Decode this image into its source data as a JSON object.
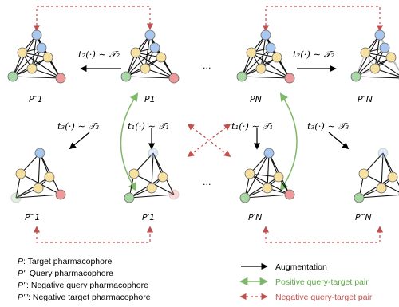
{
  "colors": {
    "blue": "#a8c8f0",
    "yellow": "#f7e1a0",
    "green": "#a9d7a3",
    "red": "#ef9a9a",
    "augment_arrow": "#000000",
    "positive_arrow": "#7fb86a",
    "negative_arrow": "#c0504d",
    "positive_text": "#5fa84a",
    "negative_text": "#c0504d"
  },
  "graph_labels": {
    "P2_1": "P″1",
    "P1": "P1",
    "PN": "PN",
    "P2_N": "P″N",
    "P3_1": "P‴1",
    "P1_1": "P′1",
    "P1_N": "P′N",
    "P3_N": "P‴N"
  },
  "transforms": {
    "t2_left": "t₂(·) ∼ 𝒯₂",
    "t2_right": "t₂(·) ∼ 𝒯₂",
    "t3_left": "t₃(·) ∼ 𝒯₃",
    "t1_left": "t₁(·) ∼ 𝒯₁",
    "t1_right": "t₁(·) ∼ 𝒯₁",
    "t3_right": "t₃(·) ∼ 𝒯₃"
  },
  "ellipsis": "...",
  "legend_left": [
    {
      "sym": "P",
      "text": ": Target pharmacophore"
    },
    {
      "sym": "P'",
      "text": ": Query pharmacophore"
    },
    {
      "sym": "P''",
      "text": ": Negative query pharmacophore"
    },
    {
      "sym": "P'''",
      "text": ": Negative target pharmacophore"
    }
  ],
  "legend_right": [
    {
      "text": "Augmentation",
      "kind": "augment"
    },
    {
      "text": "Positive query-target pair",
      "kind": "positive"
    },
    {
      "text": "Negative query-target pair",
      "kind": "negative"
    }
  ]
}
